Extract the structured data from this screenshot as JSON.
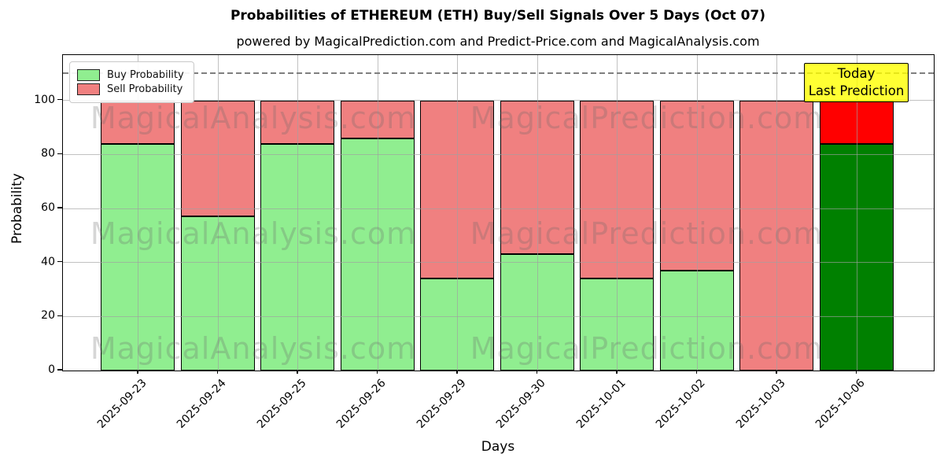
{
  "title": "Probabilities of ETHEREUM (ETH) Buy/Sell Signals Over 5 Days (Oct 07)",
  "subtitle": "powered by MagicalPrediction.com and Predict-Price.com and MagicalAnalysis.com",
  "axes": {
    "xlabel": "Days",
    "ylabel": "Probability",
    "yticks": [
      0,
      20,
      40,
      60,
      80,
      100
    ],
    "ymax": 116.5,
    "dashed_line_y": 110,
    "grid": true
  },
  "legend": [
    {
      "label": "Buy Probability",
      "color": "#90EE90"
    },
    {
      "label": "Sell Probability",
      "color": "#F08080"
    }
  ],
  "annotation": {
    "line1": "Today",
    "line2": "Last Prediction",
    "bg_color": "#FFFF00"
  },
  "watermarks": {
    "left_text": "MagicalAnalysis.com",
    "right_text": "MagicalPrediction.com"
  },
  "chart_data": {
    "type": "bar",
    "stacked": true,
    "title": "Probabilities of ETHEREUM (ETH) Buy/Sell Signals Over 5 Days (Oct 07)",
    "xlabel": "Days",
    "ylabel": "Probability",
    "ylim": [
      0,
      116.5
    ],
    "categories": [
      "2025-09-23",
      "2025-09-24",
      "2025-09-25",
      "2025-09-26",
      "2025-09-29",
      "2025-09-30",
      "2025-10-01",
      "2025-10-02",
      "2025-10-03",
      "2025-10-06"
    ],
    "series": [
      {
        "name": "Buy Probability",
        "color": "#90EE90",
        "values": [
          84,
          57,
          84,
          86,
          34,
          43,
          34,
          37,
          0,
          84
        ]
      },
      {
        "name": "Sell Probability",
        "color": "#F08080",
        "values": [
          16,
          43,
          16,
          14,
          66,
          57,
          66,
          63,
          100,
          16
        ]
      }
    ],
    "highlight": {
      "index": 9,
      "buy_color": "#008000",
      "sell_color": "#FF0000",
      "note": "Today / Last Prediction"
    },
    "legend_position": "upper left"
  }
}
